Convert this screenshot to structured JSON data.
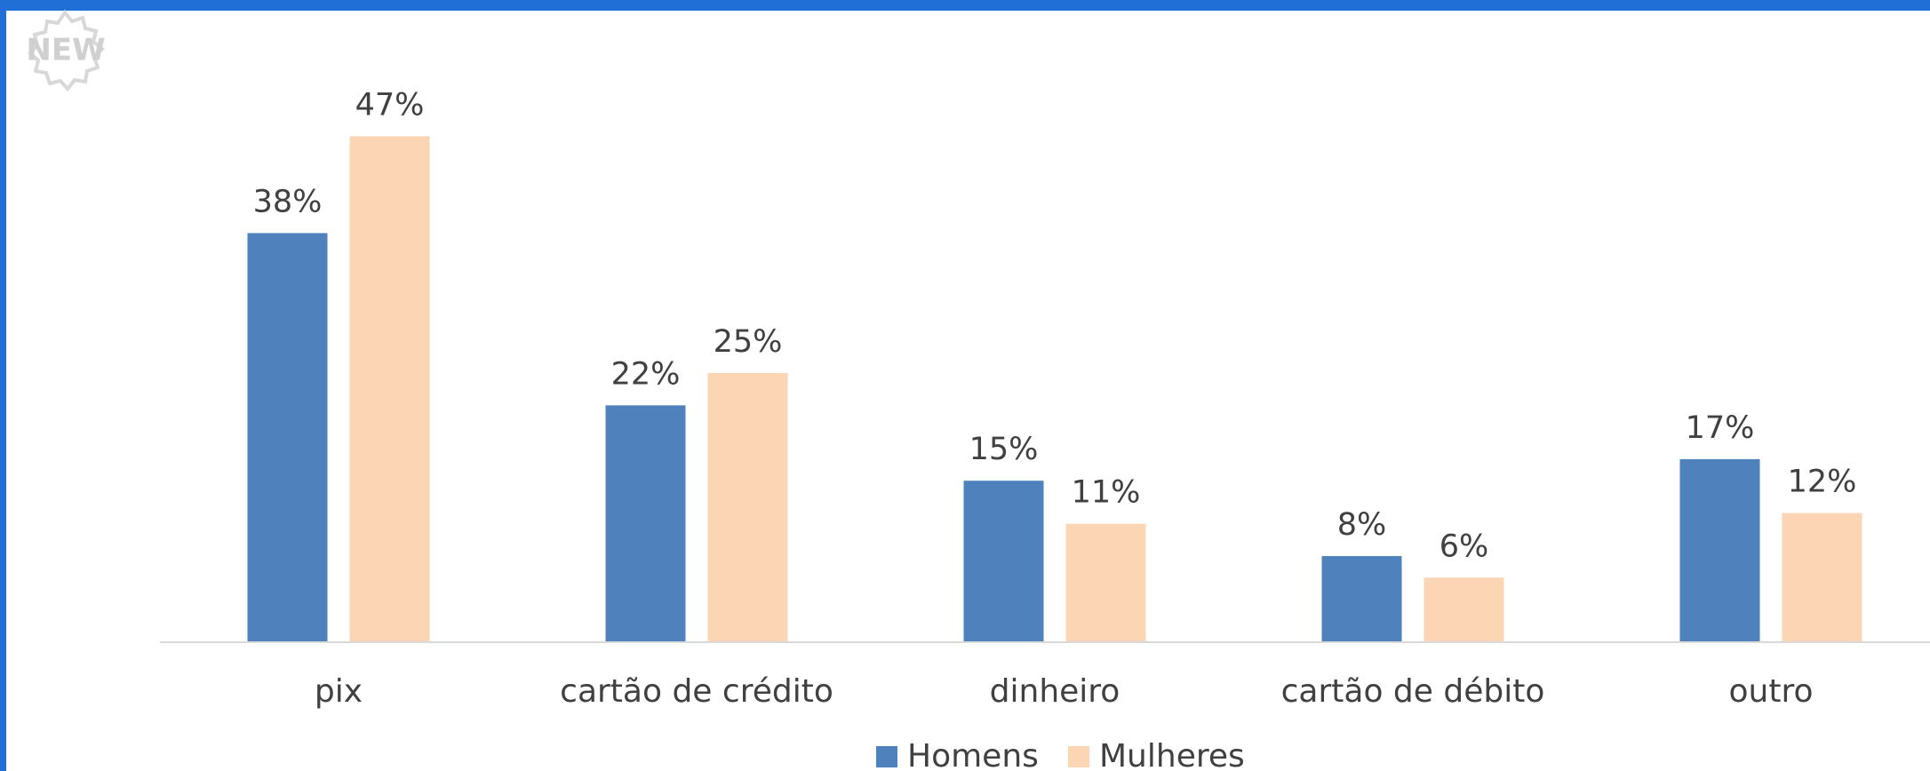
{
  "badge": "NEW",
  "chart_data": {
    "type": "bar",
    "categories": [
      "pix",
      "cartão de crédito",
      "dinheiro",
      "cartão de débito",
      "outro"
    ],
    "series": [
      {
        "name": "Homens",
        "color": "#4f81bd",
        "values": [
          38,
          22,
          15,
          8,
          17
        ],
        "value_labels": [
          "38%",
          "22%",
          "15%",
          "8%",
          "17%"
        ]
      },
      {
        "name": "Mulheres",
        "color": "#fcd5b4",
        "values": [
          47,
          25,
          11,
          6,
          12
        ],
        "value_labels": [
          "47%",
          "25%",
          "11%",
          "6%",
          "12%"
        ]
      }
    ],
    "ylim": [
      0,
      50
    ],
    "legend": "bottom"
  }
}
